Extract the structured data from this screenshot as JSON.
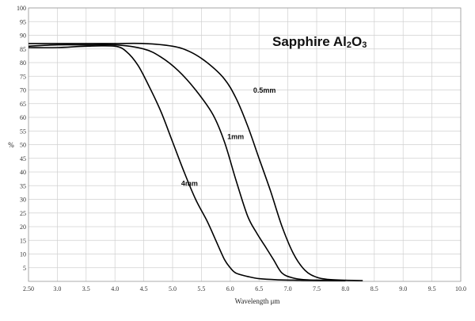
{
  "chart_data": {
    "type": "line",
    "title": "Sapphire Al2O3",
    "title_parts": {
      "pre": "Sapphire Al",
      "sub1": "2",
      "mid": "O",
      "sub2": "3"
    },
    "xlabel": "Wavelength μm",
    "ylabel": "%",
    "xlim": [
      2.5,
      10.0
    ],
    "ylim": [
      0,
      100
    ],
    "grid": true,
    "x_ticks": [
      2.5,
      3.0,
      3.5,
      4.0,
      4.5,
      5.0,
      5.5,
      6.0,
      6.5,
      7.0,
      7.5,
      8.0,
      8.5,
      9.0,
      9.5,
      10.0
    ],
    "x_tick_labels": [
      "2.50",
      "3.0",
      "3.5",
      "4.0",
      "4.5",
      "5.0",
      "5.5",
      "6.0",
      "6.5",
      "7.0",
      "7.5",
      "8.0",
      "8.5",
      "9.0",
      "9.5",
      "10.0"
    ],
    "y_ticks": [
      5,
      10,
      15,
      20,
      25,
      30,
      35,
      40,
      45,
      50,
      55,
      60,
      65,
      70,
      75,
      80,
      85,
      90,
      95,
      100
    ],
    "y_tick_labels": [
      "5",
      "10",
      "15",
      "20",
      "25",
      "30",
      "35",
      "40",
      "45",
      "50",
      "55",
      "60",
      "65",
      "70",
      "75",
      "80",
      "85",
      "90",
      "95",
      "100"
    ],
    "series": [
      {
        "name": "0.5mm",
        "color": "#000000",
        "x": [
          2.5,
          3.0,
          3.5,
          4.0,
          4.5,
          5.0,
          5.3,
          5.6,
          5.9,
          6.1,
          6.3,
          6.5,
          6.7,
          6.9,
          7.1,
          7.3,
          7.5,
          7.7,
          8.0,
          8.3
        ],
        "y": [
          87,
          87,
          87,
          87,
          87,
          86,
          84,
          80,
          74,
          67,
          57,
          45,
          33,
          20,
          10,
          4,
          1.5,
          0.7,
          0.4,
          0.3
        ],
        "label_at": [
          6.4,
          69
        ]
      },
      {
        "name": "1mm",
        "color": "#000000",
        "x": [
          2.5,
          3.0,
          3.5,
          4.0,
          4.5,
          4.8,
          5.1,
          5.4,
          5.7,
          5.9,
          6.1,
          6.3,
          6.45,
          6.6,
          6.75,
          6.9,
          7.1,
          7.3,
          7.6,
          8.0
        ],
        "y": [
          86,
          86.5,
          86.5,
          86.5,
          85,
          82,
          77,
          70,
          61,
          51,
          37,
          24,
          18,
          13,
          8,
          3,
          1.2,
          0.6,
          0.4,
          0.3
        ],
        "label_at": [
          5.95,
          52
        ]
      },
      {
        "name": "4mm",
        "color": "#000000",
        "x": [
          2.5,
          3.0,
          3.5,
          4.0,
          4.2,
          4.4,
          4.6,
          4.8,
          5.0,
          5.2,
          5.4,
          5.6,
          5.75,
          5.9,
          6.0,
          6.1,
          6.3,
          6.5,
          6.8,
          7.2,
          7.6,
          8.0
        ],
        "y": [
          85.5,
          85.5,
          86,
          86,
          84,
          79,
          71,
          62,
          51,
          40,
          30,
          22,
          15,
          8,
          5,
          3,
          1.8,
          1.0,
          0.6,
          0.4,
          0.3,
          0.3
        ],
        "label_at": [
          5.15,
          35
        ]
      }
    ]
  }
}
